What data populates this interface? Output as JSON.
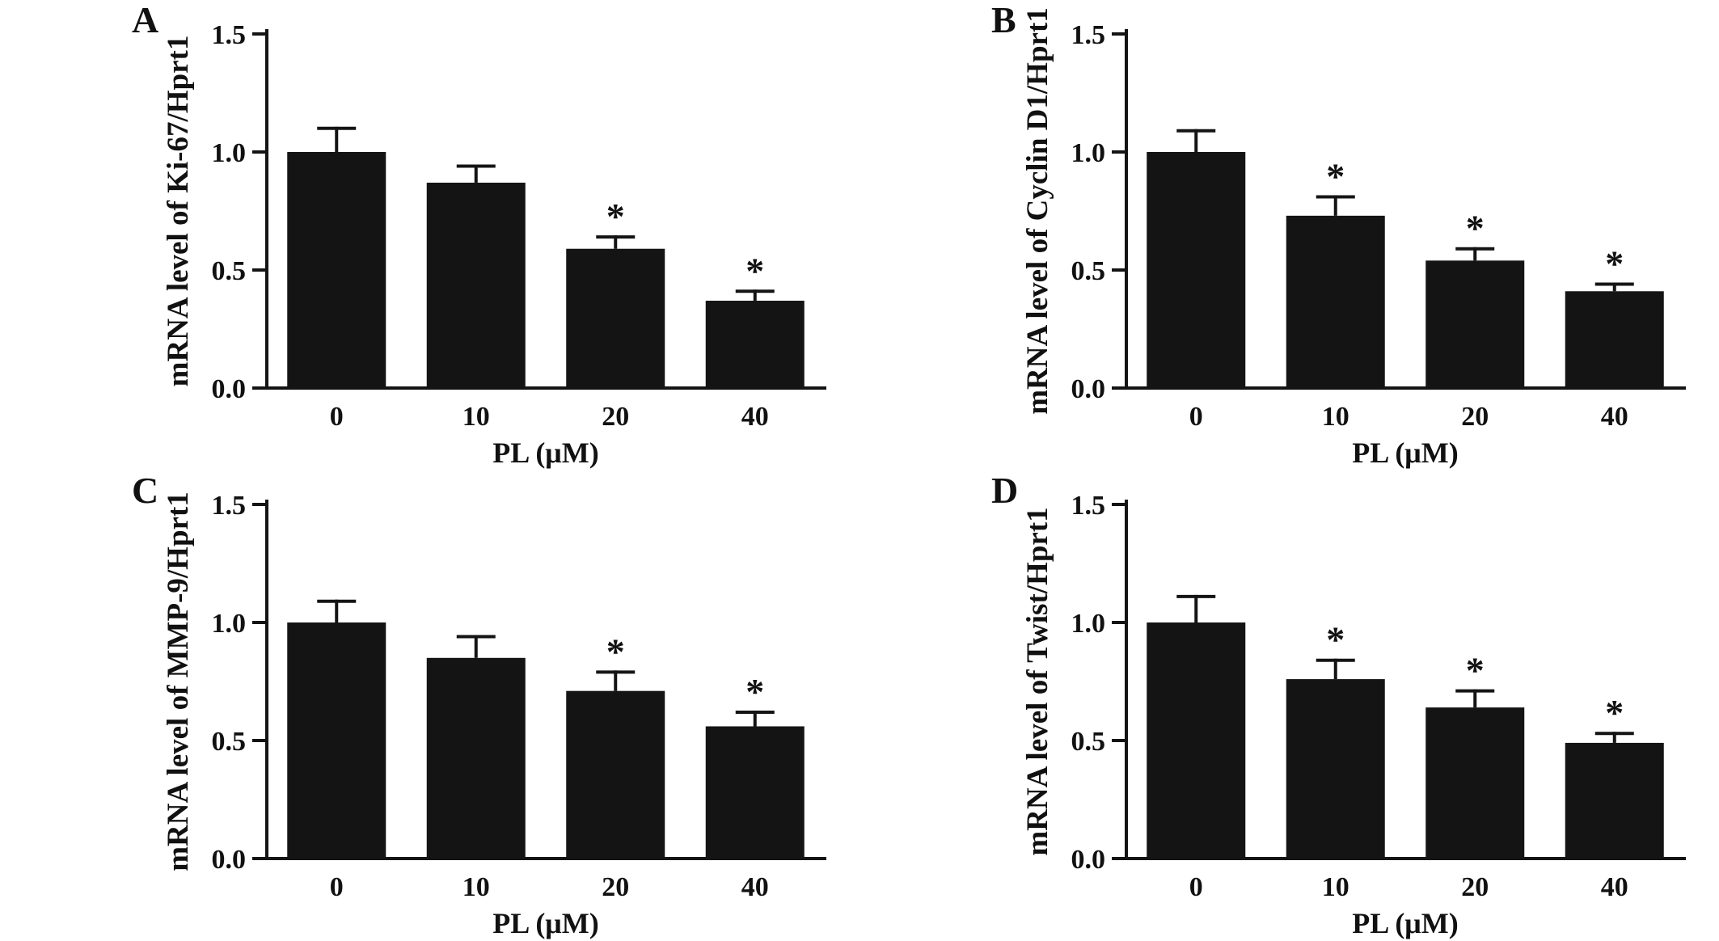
{
  "figure": {
    "background": "#ffffff",
    "bar_color": "#141414",
    "axis_color": "#141414"
  },
  "chart_data": [
    {
      "type": "bar",
      "panel_label": "A",
      "ylabel": "mRNA level of Ki-67/Hprt1",
      "xlabel": "PL (μM)",
      "categories": [
        "0",
        "10",
        "20",
        "40"
      ],
      "values": [
        1.0,
        0.87,
        0.59,
        0.37
      ],
      "errors": [
        0.1,
        0.07,
        0.05,
        0.04
      ],
      "significance": [
        "",
        "",
        "*",
        "*"
      ],
      "ylim": [
        0,
        1.5
      ],
      "yticks": [
        0.0,
        0.5,
        1.0,
        1.5
      ]
    },
    {
      "type": "bar",
      "panel_label": "B",
      "ylabel": "mRNA level of Cyclin D1/Hprt1",
      "xlabel": "PL (μM)",
      "categories": [
        "0",
        "10",
        "20",
        "40"
      ],
      "values": [
        1.0,
        0.73,
        0.54,
        0.41
      ],
      "errors": [
        0.09,
        0.08,
        0.05,
        0.03
      ],
      "significance": [
        "",
        "*",
        "*",
        "*"
      ],
      "ylim": [
        0,
        1.5
      ],
      "yticks": [
        0.0,
        0.5,
        1.0,
        1.5
      ]
    },
    {
      "type": "bar",
      "panel_label": "C",
      "ylabel": "mRNA level of MMP-9/Hprt1",
      "xlabel": "PL (μM)",
      "categories": [
        "0",
        "10",
        "20",
        "40"
      ],
      "values": [
        1.0,
        0.85,
        0.71,
        0.56
      ],
      "errors": [
        0.09,
        0.09,
        0.08,
        0.06
      ],
      "significance": [
        "",
        "",
        "*",
        "*"
      ],
      "ylim": [
        0,
        1.5
      ],
      "yticks": [
        0.0,
        0.5,
        1.0,
        1.5
      ]
    },
    {
      "type": "bar",
      "panel_label": "D",
      "ylabel": "mRNA level of Twist/Hprt1",
      "xlabel": "PL (μM)",
      "categories": [
        "0",
        "10",
        "20",
        "40"
      ],
      "values": [
        1.0,
        0.76,
        0.64,
        0.49
      ],
      "errors": [
        0.11,
        0.08,
        0.07,
        0.04
      ],
      "significance": [
        "",
        "*",
        "*",
        "*"
      ],
      "ylim": [
        0,
        1.5
      ],
      "yticks": [
        0.0,
        0.5,
        1.0,
        1.5
      ]
    }
  ]
}
